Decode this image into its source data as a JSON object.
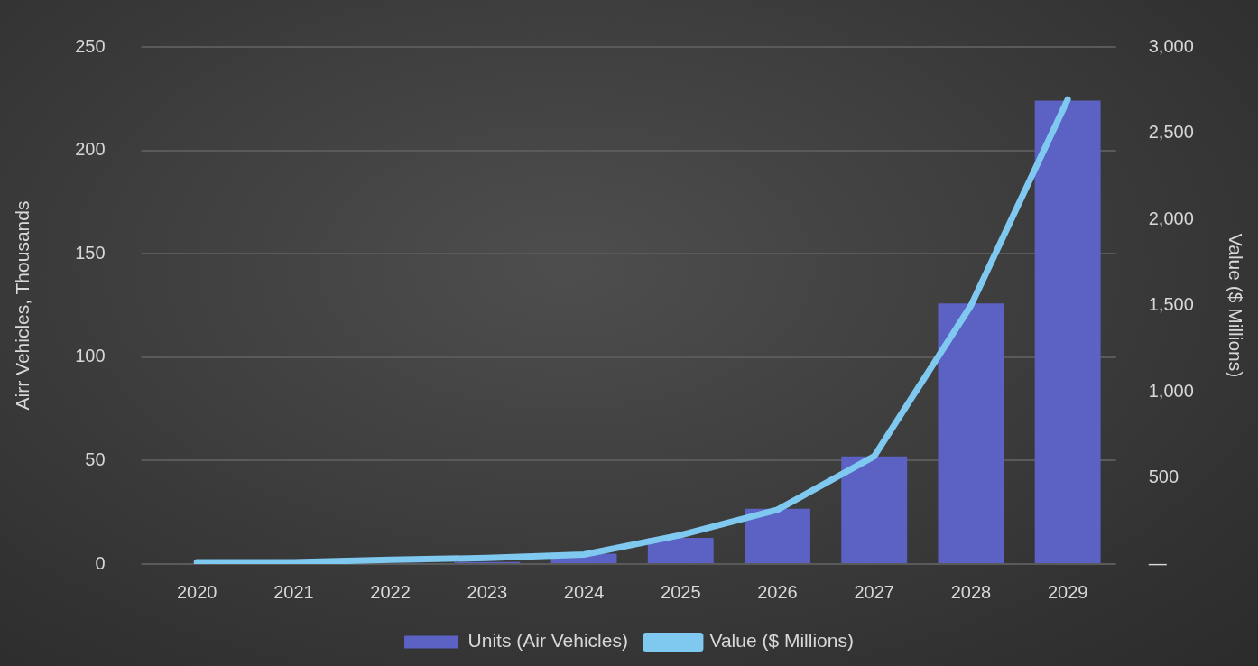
{
  "chart_data": {
    "type": "bar",
    "categories": [
      "2020",
      "2021",
      "2022",
      "2023",
      "2024",
      "2025",
      "2026",
      "2027",
      "2028",
      "2029"
    ],
    "ylabel": "Airr Vehicles, Thousands",
    "y2label": "Value ($ Millions)",
    "ylim": [
      0,
      250
    ],
    "yticks": [
      0,
      50,
      100,
      150,
      200,
      250
    ],
    "y2lim": [
      0,
      3000
    ],
    "y2ticks": [
      {
        "value": 0,
        "label": "—"
      },
      {
        "value": 500,
        "label": "500"
      },
      {
        "value": 1000,
        "label": "1,000"
      },
      {
        "value": 1500,
        "label": "1,500"
      },
      {
        "value": 2000,
        "label": "2,000"
      },
      {
        "value": 2500,
        "label": "2,500"
      },
      {
        "value": 3000,
        "label": "3,000"
      }
    ],
    "grid": "y",
    "legend": "bottom",
    "series": [
      {
        "name": "Units (Air Vehicles)",
        "color": "#5b62c4",
        "values": [
          0,
          0,
          0.5,
          1,
          5,
          12.7,
          26.7,
          52,
          126,
          224
        ]
      },
      {
        "name": "Value ($ Millions)",
        "type": "line",
        "axis": "y2",
        "color": "#7fc8f0",
        "values": [
          10,
          10,
          25,
          35,
          55,
          168,
          315,
          625,
          1500,
          2695
        ]
      }
    ]
  }
}
